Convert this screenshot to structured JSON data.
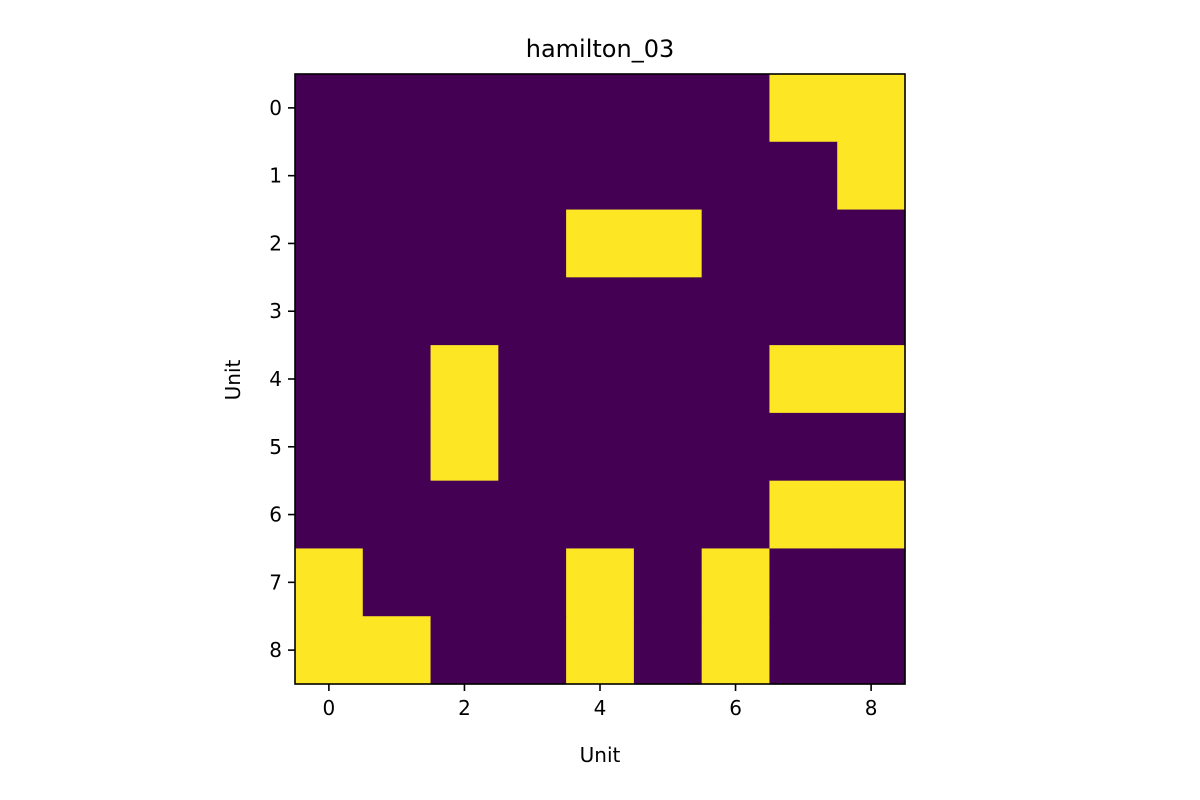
{
  "chart_data": {
    "type": "heatmap",
    "title": "hamilton_03",
    "xlabel": "Unit",
    "ylabel": "Unit",
    "x_ticks": [
      "0",
      "2",
      "4",
      "6",
      "8"
    ],
    "y_ticks": [
      "0",
      "1",
      "2",
      "3",
      "4",
      "5",
      "6",
      "7",
      "8"
    ],
    "xlim": [
      -0.5,
      8.5
    ],
    "ylim": [
      8.5,
      -0.5
    ],
    "colormap": {
      "low": "#440154",
      "high": "#fde725"
    },
    "grid": false,
    "matrix": [
      [
        0,
        0,
        0,
        0,
        0,
        0,
        0,
        1,
        1
      ],
      [
        0,
        0,
        0,
        0,
        0,
        0,
        0,
        0,
        1
      ],
      [
        0,
        0,
        0,
        0,
        1,
        1,
        0,
        0,
        0
      ],
      [
        0,
        0,
        0,
        0,
        0,
        0,
        0,
        0,
        0
      ],
      [
        0,
        0,
        1,
        0,
        0,
        0,
        0,
        1,
        1
      ],
      [
        0,
        0,
        1,
        0,
        0,
        0,
        0,
        0,
        0
      ],
      [
        0,
        0,
        0,
        0,
        0,
        0,
        0,
        1,
        1
      ],
      [
        1,
        0,
        0,
        0,
        1,
        0,
        1,
        0,
        0
      ],
      [
        1,
        1,
        0,
        0,
        1,
        0,
        1,
        0,
        0
      ]
    ]
  }
}
